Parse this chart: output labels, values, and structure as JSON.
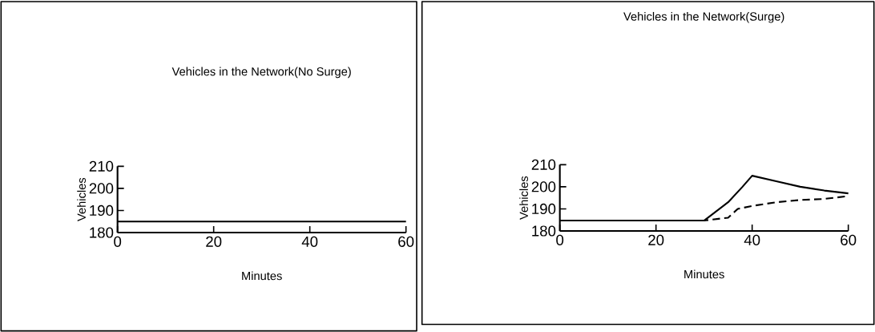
{
  "chart_data": [
    {
      "type": "line",
      "title": "Vehicles in the Network(No Surge)",
      "xlabel": "Minutes",
      "ylabel": "Vehicles",
      "xlim": [
        0,
        60
      ],
      "ylim": [
        180,
        210
      ],
      "xticks": [
        0,
        20,
        40,
        60
      ],
      "yticks": [
        180,
        190,
        200,
        210
      ],
      "series": [
        {
          "color": "#000000",
          "line_style": "solid",
          "x": [
            0,
            60
          ],
          "values": [
            185,
            185
          ]
        }
      ]
    },
    {
      "type": "line",
      "title": "Vehicles in the Network(Surge)",
      "xlabel": "Minutes",
      "ylabel": "Vehicles",
      "xlim": [
        0,
        60
      ],
      "ylim": [
        180,
        210
      ],
      "xticks": [
        0,
        20,
        40,
        60
      ],
      "yticks": [
        180,
        190,
        200,
        210
      ],
      "series": [
        {
          "color": "#000000",
          "line_style": "solid",
          "x": [
            0,
            30,
            35,
            38,
            40,
            45,
            50,
            55,
            60
          ],
          "values": [
            184.7,
            184.7,
            193,
            200,
            205,
            202.5,
            200,
            198.3,
            197
          ]
        },
        {
          "color": "#000000",
          "line_style": "dashed",
          "x": [
            0,
            30,
            33,
            35,
            37,
            40,
            45,
            50,
            55,
            60
          ],
          "values": [
            184.7,
            184.7,
            185.5,
            186,
            190,
            191.3,
            193,
            194,
            194.5,
            195.8
          ]
        }
      ]
    }
  ]
}
